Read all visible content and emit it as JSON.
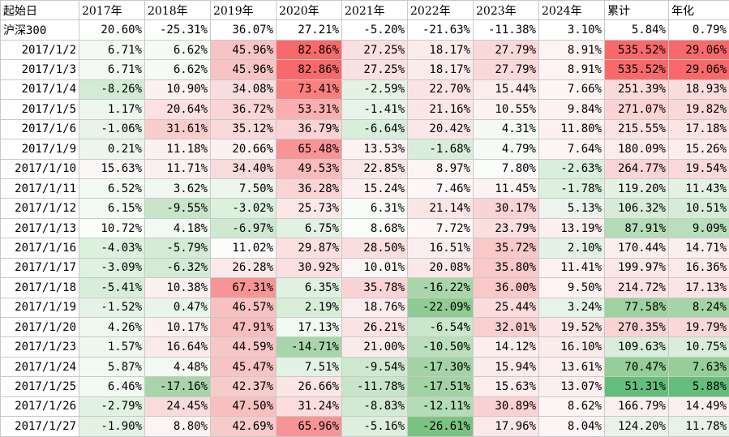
{
  "headers": [
    "起始日",
    "2017年",
    "2018年",
    "2019年",
    "2020年",
    "2021年",
    "2022年",
    "2023年",
    "2024年",
    "累计",
    "年化"
  ],
  "benchmark": {
    "label": "沪深300",
    "cells": [
      {
        "v": "20.60%",
        "bg": "#ffffff"
      },
      {
        "v": "-25.31%",
        "bg": "#ffffff"
      },
      {
        "v": "36.07%",
        "bg": "#ffffff"
      },
      {
        "v": "27.21%",
        "bg": "#ffffff"
      },
      {
        "v": "-5.20%",
        "bg": "#ffffff"
      },
      {
        "v": "-21.63%",
        "bg": "#ffffff"
      },
      {
        "v": "-11.38%",
        "bg": "#ffffff"
      },
      {
        "v": "3.10%",
        "bg": "#ffffff"
      },
      {
        "v": "5.84%",
        "bg": "#ffffff"
      },
      {
        "v": "0.79%",
        "bg": "#ffffff"
      }
    ]
  },
  "rows": [
    {
      "date": "2017/1/2",
      "cells": [
        {
          "v": "6.71%",
          "bg": "#f4f9f3"
        },
        {
          "v": "6.62%",
          "bg": "#f5faf4"
        },
        {
          "v": "45.96%",
          "bg": "#f7c3c4"
        },
        {
          "v": "82.86%",
          "bg": "#f8696b"
        },
        {
          "v": "27.25%",
          "bg": "#fbe0e1"
        },
        {
          "v": "18.17%",
          "bg": "#fcebeb"
        },
        {
          "v": "27.79%",
          "bg": "#fad8d9"
        },
        {
          "v": "8.91%",
          "bg": "#fdf3f3"
        },
        {
          "v": "535.52%",
          "bg": "#f8696b"
        },
        {
          "v": "29.06%",
          "bg": "#f8696b"
        }
      ]
    },
    {
      "date": "2017/1/3",
      "cells": [
        {
          "v": "6.71%",
          "bg": "#f4f9f3"
        },
        {
          "v": "6.62%",
          "bg": "#f5faf4"
        },
        {
          "v": "45.96%",
          "bg": "#f7c3c4"
        },
        {
          "v": "82.86%",
          "bg": "#f8696b"
        },
        {
          "v": "27.25%",
          "bg": "#fbe0e1"
        },
        {
          "v": "18.17%",
          "bg": "#fcebeb"
        },
        {
          "v": "27.79%",
          "bg": "#fad8d9"
        },
        {
          "v": "8.91%",
          "bg": "#fdf3f3"
        },
        {
          "v": "535.52%",
          "bg": "#f8696b"
        },
        {
          "v": "29.06%",
          "bg": "#f8696b"
        }
      ]
    },
    {
      "date": "2017/1/4",
      "cells": [
        {
          "v": "-8.26%",
          "bg": "#d3ebd5"
        },
        {
          "v": "10.90%",
          "bg": "#fcf0f0"
        },
        {
          "v": "34.08%",
          "bg": "#f9dcdd"
        },
        {
          "v": "73.41%",
          "bg": "#f9807f"
        },
        {
          "v": "-2.59%",
          "bg": "#e4f2e4"
        },
        {
          "v": "22.70%",
          "bg": "#fbe3e3"
        },
        {
          "v": "15.44%",
          "bg": "#fcecec"
        },
        {
          "v": "7.66%",
          "bg": "#fdf5f5"
        },
        {
          "v": "251.39%",
          "bg": "#fbd9d9"
        },
        {
          "v": "18.93%",
          "bg": "#fbdcdc"
        }
      ]
    },
    {
      "date": "2017/1/5",
      "cells": [
        {
          "v": "1.17%",
          "bg": "#eef7ee"
        },
        {
          "v": "20.64%",
          "bg": "#fbe1e1"
        },
        {
          "v": "36.72%",
          "bg": "#f9d5d6"
        },
        {
          "v": "53.31%",
          "bg": "#faaeaf"
        },
        {
          "v": "-1.41%",
          "bg": "#e6f3e6"
        },
        {
          "v": "21.16%",
          "bg": "#fbe6e6"
        },
        {
          "v": "10.55%",
          "bg": "#fdf2f2"
        },
        {
          "v": "9.84%",
          "bg": "#fdf2f2"
        },
        {
          "v": "271.07%",
          "bg": "#fbd3d3"
        },
        {
          "v": "19.82%",
          "bg": "#fbd8d8"
        }
      ]
    },
    {
      "date": "2017/1/6",
      "cells": [
        {
          "v": "-1.06%",
          "bg": "#e7f4e7"
        },
        {
          "v": "31.61%",
          "bg": "#f9cccd"
        },
        {
          "v": "35.12%",
          "bg": "#f9d9da"
        },
        {
          "v": "36.79%",
          "bg": "#fbd3d4"
        },
        {
          "v": "-6.64%",
          "bg": "#d9eeda"
        },
        {
          "v": "20.42%",
          "bg": "#fbe7e7"
        },
        {
          "v": "4.31%",
          "bg": "#f4f9f4"
        },
        {
          "v": "11.80%",
          "bg": "#fdf0f0"
        },
        {
          "v": "215.55%",
          "bg": "#fce3e3"
        },
        {
          "v": "17.18%",
          "bg": "#fce4e4"
        }
      ]
    },
    {
      "date": "2017/1/9",
      "cells": [
        {
          "v": "0.21%",
          "bg": "#ecf6ec"
        },
        {
          "v": "11.18%",
          "bg": "#fcf0f0"
        },
        {
          "v": "20.66%",
          "bg": "#fbf1f1"
        },
        {
          "v": "65.48%",
          "bg": "#f99496"
        },
        {
          "v": "13.53%",
          "bg": "#fcf2f2"
        },
        {
          "v": "-1.68%",
          "bg": "#d9eeda"
        },
        {
          "v": "4.79%",
          "bg": "#f5faf5"
        },
        {
          "v": "7.64%",
          "bg": "#fdf5f5"
        },
        {
          "v": "180.09%",
          "bg": "#fcecec"
        },
        {
          "v": "15.26%",
          "bg": "#fdecec"
        }
      ]
    },
    {
      "date": "2017/1/10",
      "cells": [
        {
          "v": "15.63%",
          "bg": "#fcf7f7"
        },
        {
          "v": "11.71%",
          "bg": "#fcefef"
        },
        {
          "v": "34.40%",
          "bg": "#f9dbdc"
        },
        {
          "v": "49.53%",
          "bg": "#fabbbc"
        },
        {
          "v": "22.85%",
          "bg": "#fbe7e7"
        },
        {
          "v": "8.97%",
          "bg": "#fdf5f5"
        },
        {
          "v": "7.80%",
          "bg": "#fafcfa"
        },
        {
          "v": "-2.63%",
          "bg": "#daefdb"
        },
        {
          "v": "264.77%",
          "bg": "#fbd5d5"
        },
        {
          "v": "19.54%",
          "bg": "#fbd9d9"
        }
      ]
    },
    {
      "date": "2017/1/11",
      "cells": [
        {
          "v": "6.52%",
          "bg": "#f3f9f3"
        },
        {
          "v": "3.62%",
          "bg": "#f1f8f1"
        },
        {
          "v": "7.50%",
          "bg": "#ecf6ec"
        },
        {
          "v": "36.28%",
          "bg": "#fbd4d5"
        },
        {
          "v": "15.24%",
          "bg": "#fcf0f0"
        },
        {
          "v": "7.46%",
          "bg": "#fdf7f7"
        },
        {
          "v": "11.45%",
          "bg": "#fdf2f2"
        },
        {
          "v": "-1.78%",
          "bg": "#ddf0de"
        },
        {
          "v": "119.20%",
          "bg": "#e4f2e4"
        },
        {
          "v": "11.43%",
          "bg": "#e3f2e3"
        }
      ]
    },
    {
      "date": "2017/1/12",
      "cells": [
        {
          "v": "6.15%",
          "bg": "#f3f9f3"
        },
        {
          "v": "-9.55%",
          "bg": "#c8e5c9"
        },
        {
          "v": "-3.02%",
          "bg": "#dcf0dd"
        },
        {
          "v": "25.73%",
          "bg": "#fce7e7"
        },
        {
          "v": "6.31%",
          "bg": "#f8fbf8"
        },
        {
          "v": "21.14%",
          "bg": "#fbe6e6"
        },
        {
          "v": "30.17%",
          "bg": "#fad3d4"
        },
        {
          "v": "5.13%",
          "bg": "#ebf5eb"
        },
        {
          "v": "106.32%",
          "bg": "#d6ecd7"
        },
        {
          "v": "10.51%",
          "bg": "#d6ecd7"
        }
      ]
    },
    {
      "date": "2017/1/13",
      "cells": [
        {
          "v": "10.72%",
          "bg": "#fafdfa"
        },
        {
          "v": "4.18%",
          "bg": "#f2f8f2"
        },
        {
          "v": "-6.97%",
          "bg": "#cfe9d0"
        },
        {
          "v": "6.75%",
          "bg": "#e1f1e2"
        },
        {
          "v": "8.68%",
          "bg": "#fafcfa"
        },
        {
          "v": "7.72%",
          "bg": "#fdf7f7"
        },
        {
          "v": "23.79%",
          "bg": "#fbdfdf"
        },
        {
          "v": "13.19%",
          "bg": "#fcefef"
        },
        {
          "v": "87.91%",
          "bg": "#b4dcb5"
        },
        {
          "v": "9.09%",
          "bg": "#b8debb"
        }
      ]
    },
    {
      "date": "2017/1/16",
      "cells": [
        {
          "v": "-4.03%",
          "bg": "#ddf0dd"
        },
        {
          "v": "-5.79%",
          "bg": "#d5ebd6"
        },
        {
          "v": "11.02%",
          "bg": "#fafcfa"
        },
        {
          "v": "29.87%",
          "bg": "#fce0e0"
        },
        {
          "v": "28.50%",
          "bg": "#fbdede"
        },
        {
          "v": "16.51%",
          "bg": "#fceeee"
        },
        {
          "v": "35.72%",
          "bg": "#f9c8c9"
        },
        {
          "v": "2.10%",
          "bg": "#e4f2e5"
        },
        {
          "v": "170.44%",
          "bg": "#fdeeee"
        },
        {
          "v": "14.71%",
          "bg": "#fdeeee"
        }
      ]
    },
    {
      "date": "2017/1/17",
      "cells": [
        {
          "v": "-3.09%",
          "bg": "#dff1df"
        },
        {
          "v": "-6.32%",
          "bg": "#d3ead4"
        },
        {
          "v": "26.28%",
          "bg": "#fbe9e9"
        },
        {
          "v": "30.92%",
          "bg": "#fcdfdf"
        },
        {
          "v": "10.01%",
          "bg": "#fcf6f6"
        },
        {
          "v": "20.08%",
          "bg": "#fbe7e7"
        },
        {
          "v": "35.80%",
          "bg": "#f9c8c9"
        },
        {
          "v": "11.41%",
          "bg": "#fdf1f1"
        },
        {
          "v": "199.97%",
          "bg": "#fce7e7"
        },
        {
          "v": "16.36%",
          "bg": "#fde8e8"
        }
      ]
    },
    {
      "date": "2017/1/18",
      "cells": [
        {
          "v": "-5.41%",
          "bg": "#d9eeda"
        },
        {
          "v": "10.38%",
          "bg": "#fcf1f1"
        },
        {
          "v": "67.31%",
          "bg": "#f79495"
        },
        {
          "v": "6.35%",
          "bg": "#e0f1e1"
        },
        {
          "v": "35.78%",
          "bg": "#fad3d4"
        },
        {
          "v": "-16.22%",
          "bg": "#a8d6aa"
        },
        {
          "v": "36.00%",
          "bg": "#f9c8c9"
        },
        {
          "v": "9.50%",
          "bg": "#fdf3f3"
        },
        {
          "v": "214.72%",
          "bg": "#fce3e3"
        },
        {
          "v": "17.13%",
          "bg": "#fce4e4"
        }
      ]
    },
    {
      "date": "2017/1/19",
      "cells": [
        {
          "v": "-1.52%",
          "bg": "#e5f3e6"
        },
        {
          "v": "0.47%",
          "bg": "#eaf5ea"
        },
        {
          "v": "46.57%",
          "bg": "#f7c1c2"
        },
        {
          "v": "2.19%",
          "bg": "#d7edd8"
        },
        {
          "v": "18.76%",
          "bg": "#fbeded"
        },
        {
          "v": "-22.09%",
          "bg": "#8fcb92"
        },
        {
          "v": "25.44%",
          "bg": "#fbdbdb"
        },
        {
          "v": "3.24%",
          "bg": "#e6f3e7"
        },
        {
          "v": "77.58%",
          "bg": "#9fd2a1"
        },
        {
          "v": "8.24%",
          "bg": "#a5d4a7"
        }
      ]
    },
    {
      "date": "2017/1/20",
      "cells": [
        {
          "v": "4.26%",
          "bg": "#f0f8f0"
        },
        {
          "v": "10.17%",
          "bg": "#fcf1f1"
        },
        {
          "v": "47.91%",
          "bg": "#f7bebf"
        },
        {
          "v": "17.13%",
          "bg": "#f2f9f2"
        },
        {
          "v": "26.21%",
          "bg": "#fbe2e2"
        },
        {
          "v": "-6.54%",
          "bg": "#cae6cb"
        },
        {
          "v": "32.01%",
          "bg": "#f9cfcf"
        },
        {
          "v": "19.52%",
          "bg": "#fce6e6"
        },
        {
          "v": "270.35%",
          "bg": "#fbd3d3"
        },
        {
          "v": "19.79%",
          "bg": "#fbd8d8"
        }
      ]
    },
    {
      "date": "2017/1/23",
      "cells": [
        {
          "v": "1.57%",
          "bg": "#eff7ef"
        },
        {
          "v": "16.64%",
          "bg": "#fbe8e8"
        },
        {
          "v": "44.59%",
          "bg": "#f7c6c7"
        },
        {
          "v": "-14.71%",
          "bg": "#a8d6aa"
        },
        {
          "v": "21.00%",
          "bg": "#fbeaea"
        },
        {
          "v": "-10.50%",
          "bg": "#b9dfbb"
        },
        {
          "v": "14.12%",
          "bg": "#fdeeee"
        },
        {
          "v": "16.10%",
          "bg": "#fcebeb"
        },
        {
          "v": "109.63%",
          "bg": "#d9eeda"
        },
        {
          "v": "10.75%",
          "bg": "#d9eeda"
        }
      ]
    },
    {
      "date": "2017/1/24",
      "cells": [
        {
          "v": "5.87%",
          "bg": "#f2f9f2"
        },
        {
          "v": "4.48%",
          "bg": "#f2f8f2"
        },
        {
          "v": "45.47%",
          "bg": "#f7c4c5"
        },
        {
          "v": "7.51%",
          "bg": "#e2f2e3"
        },
        {
          "v": "-9.54%",
          "bg": "#cfe9d0"
        },
        {
          "v": "-17.30%",
          "bg": "#a3d4a6"
        },
        {
          "v": "15.94%",
          "bg": "#fcebeb"
        },
        {
          "v": "13.61%",
          "bg": "#fcefef"
        },
        {
          "v": "70.47%",
          "bg": "#95ce98"
        },
        {
          "v": "7.63%",
          "bg": "#96ce98"
        }
      ]
    },
    {
      "date": "2017/1/25",
      "cells": [
        {
          "v": "6.46%",
          "bg": "#f3f9f3"
        },
        {
          "v": "-17.16%",
          "bg": "#a7d5a9"
        },
        {
          "v": "42.37%",
          "bg": "#f8cbcb"
        },
        {
          "v": "26.66%",
          "bg": "#fce5e5"
        },
        {
          "v": "-11.78%",
          "bg": "#c8e5c9"
        },
        {
          "v": "-17.51%",
          "bg": "#a2d3a5"
        },
        {
          "v": "15.63%",
          "bg": "#fcecec"
        },
        {
          "v": "13.07%",
          "bg": "#fcefef"
        },
        {
          "v": "51.31%",
          "bg": "#63be7b"
        },
        {
          "v": "5.88%",
          "bg": "#63be7b"
        }
      ]
    },
    {
      "date": "2017/1/26",
      "cells": [
        {
          "v": "-2.79%",
          "bg": "#e1f2e1"
        },
        {
          "v": "24.45%",
          "bg": "#fadbdc"
        },
        {
          "v": "47.50%",
          "bg": "#f7bfc0"
        },
        {
          "v": "31.24%",
          "bg": "#fcdddd"
        },
        {
          "v": "-8.83%",
          "bg": "#d2ead3"
        },
        {
          "v": "-12.11%",
          "bg": "#b4dcb6"
        },
        {
          "v": "30.89%",
          "bg": "#fad1d2"
        },
        {
          "v": "8.62%",
          "bg": "#fdf4f4"
        },
        {
          "v": "166.79%",
          "bg": "#fdefef"
        },
        {
          "v": "14.49%",
          "bg": "#fdefef"
        }
      ]
    },
    {
      "date": "2017/1/27",
      "cells": [
        {
          "v": "-1.90%",
          "bg": "#e4f2e4"
        },
        {
          "v": "8.80%",
          "bg": "#fcf3f3"
        },
        {
          "v": "42.69%",
          "bg": "#f8caca"
        },
        {
          "v": "65.96%",
          "bg": "#f99496"
        },
        {
          "v": "-5.16%",
          "bg": "#deefde"
        },
        {
          "v": "-26.61%",
          "bg": "#7cc381"
        },
        {
          "v": "17.96%",
          "bg": "#fce8e8"
        },
        {
          "v": "8.04%",
          "bg": "#fdf5f5"
        },
        {
          "v": "124.20%",
          "bg": "#e8f4e8"
        },
        {
          "v": "11.78%",
          "bg": "#e6f3e6"
        }
      ]
    }
  ]
}
